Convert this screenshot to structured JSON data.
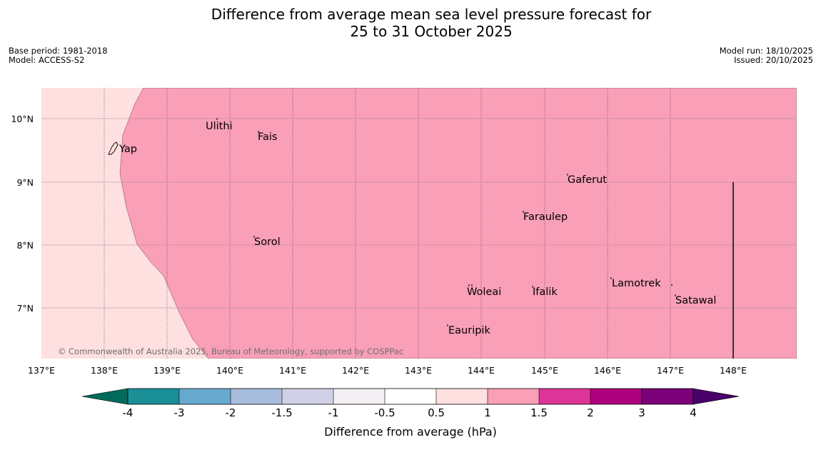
{
  "header": {
    "title_line1": "Difference from average mean sea level pressure forecast for",
    "title_line2": "25 to 31 October 2025",
    "base_period": "Base period: 1981-2018",
    "model": "Model: ACCESS-S2",
    "model_run": "Model run: 18/10/2025",
    "issued": "Issued: 20/10/2025"
  },
  "map": {
    "lon_labels": [
      "137°E",
      "138°E",
      "139°E",
      "140°E",
      "141°E",
      "142°E",
      "143°E",
      "144°E",
      "145°E",
      "146°E",
      "147°E",
      "148°E"
    ],
    "lat_labels": [
      "10°N",
      "9°N",
      "8°N",
      "7°N"
    ],
    "places": [
      {
        "name": "Yap"
      },
      {
        "name": "Ulithi"
      },
      {
        "name": "Fais"
      },
      {
        "name": "Gaferut"
      },
      {
        "name": "Faraulep"
      },
      {
        "name": "Sorol"
      },
      {
        "name": "Lamotrek"
      },
      {
        "name": "Woleai"
      },
      {
        "name": "Ifalik"
      },
      {
        "name": "Satawal"
      },
      {
        "name": "Eauripik"
      }
    ],
    "copyright": "© Commonwealth of Australia 2025, Bureau of Meteorology, supported by COSPPac",
    "colors": {
      "band_0_5_1": "#fde0df",
      "band_1_1_5": "#f99fb8"
    }
  },
  "colorbar": {
    "label": "Difference from average (hPa)",
    "ticks": [
      "-4",
      "-3",
      "-2",
      "-1.5",
      "-1",
      "-0.5",
      "0.5",
      "1",
      "1.5",
      "2",
      "3",
      "4"
    ],
    "colors": [
      "#006b5a",
      "#1a8f96",
      "#67a9cf",
      "#a8bddb",
      "#d0d1e6",
      "#f2eef2",
      "#ffffff",
      "#fde0df",
      "#f99fb8",
      "#dd3497",
      "#ae017e",
      "#7a0177",
      "#49006a"
    ]
  }
}
